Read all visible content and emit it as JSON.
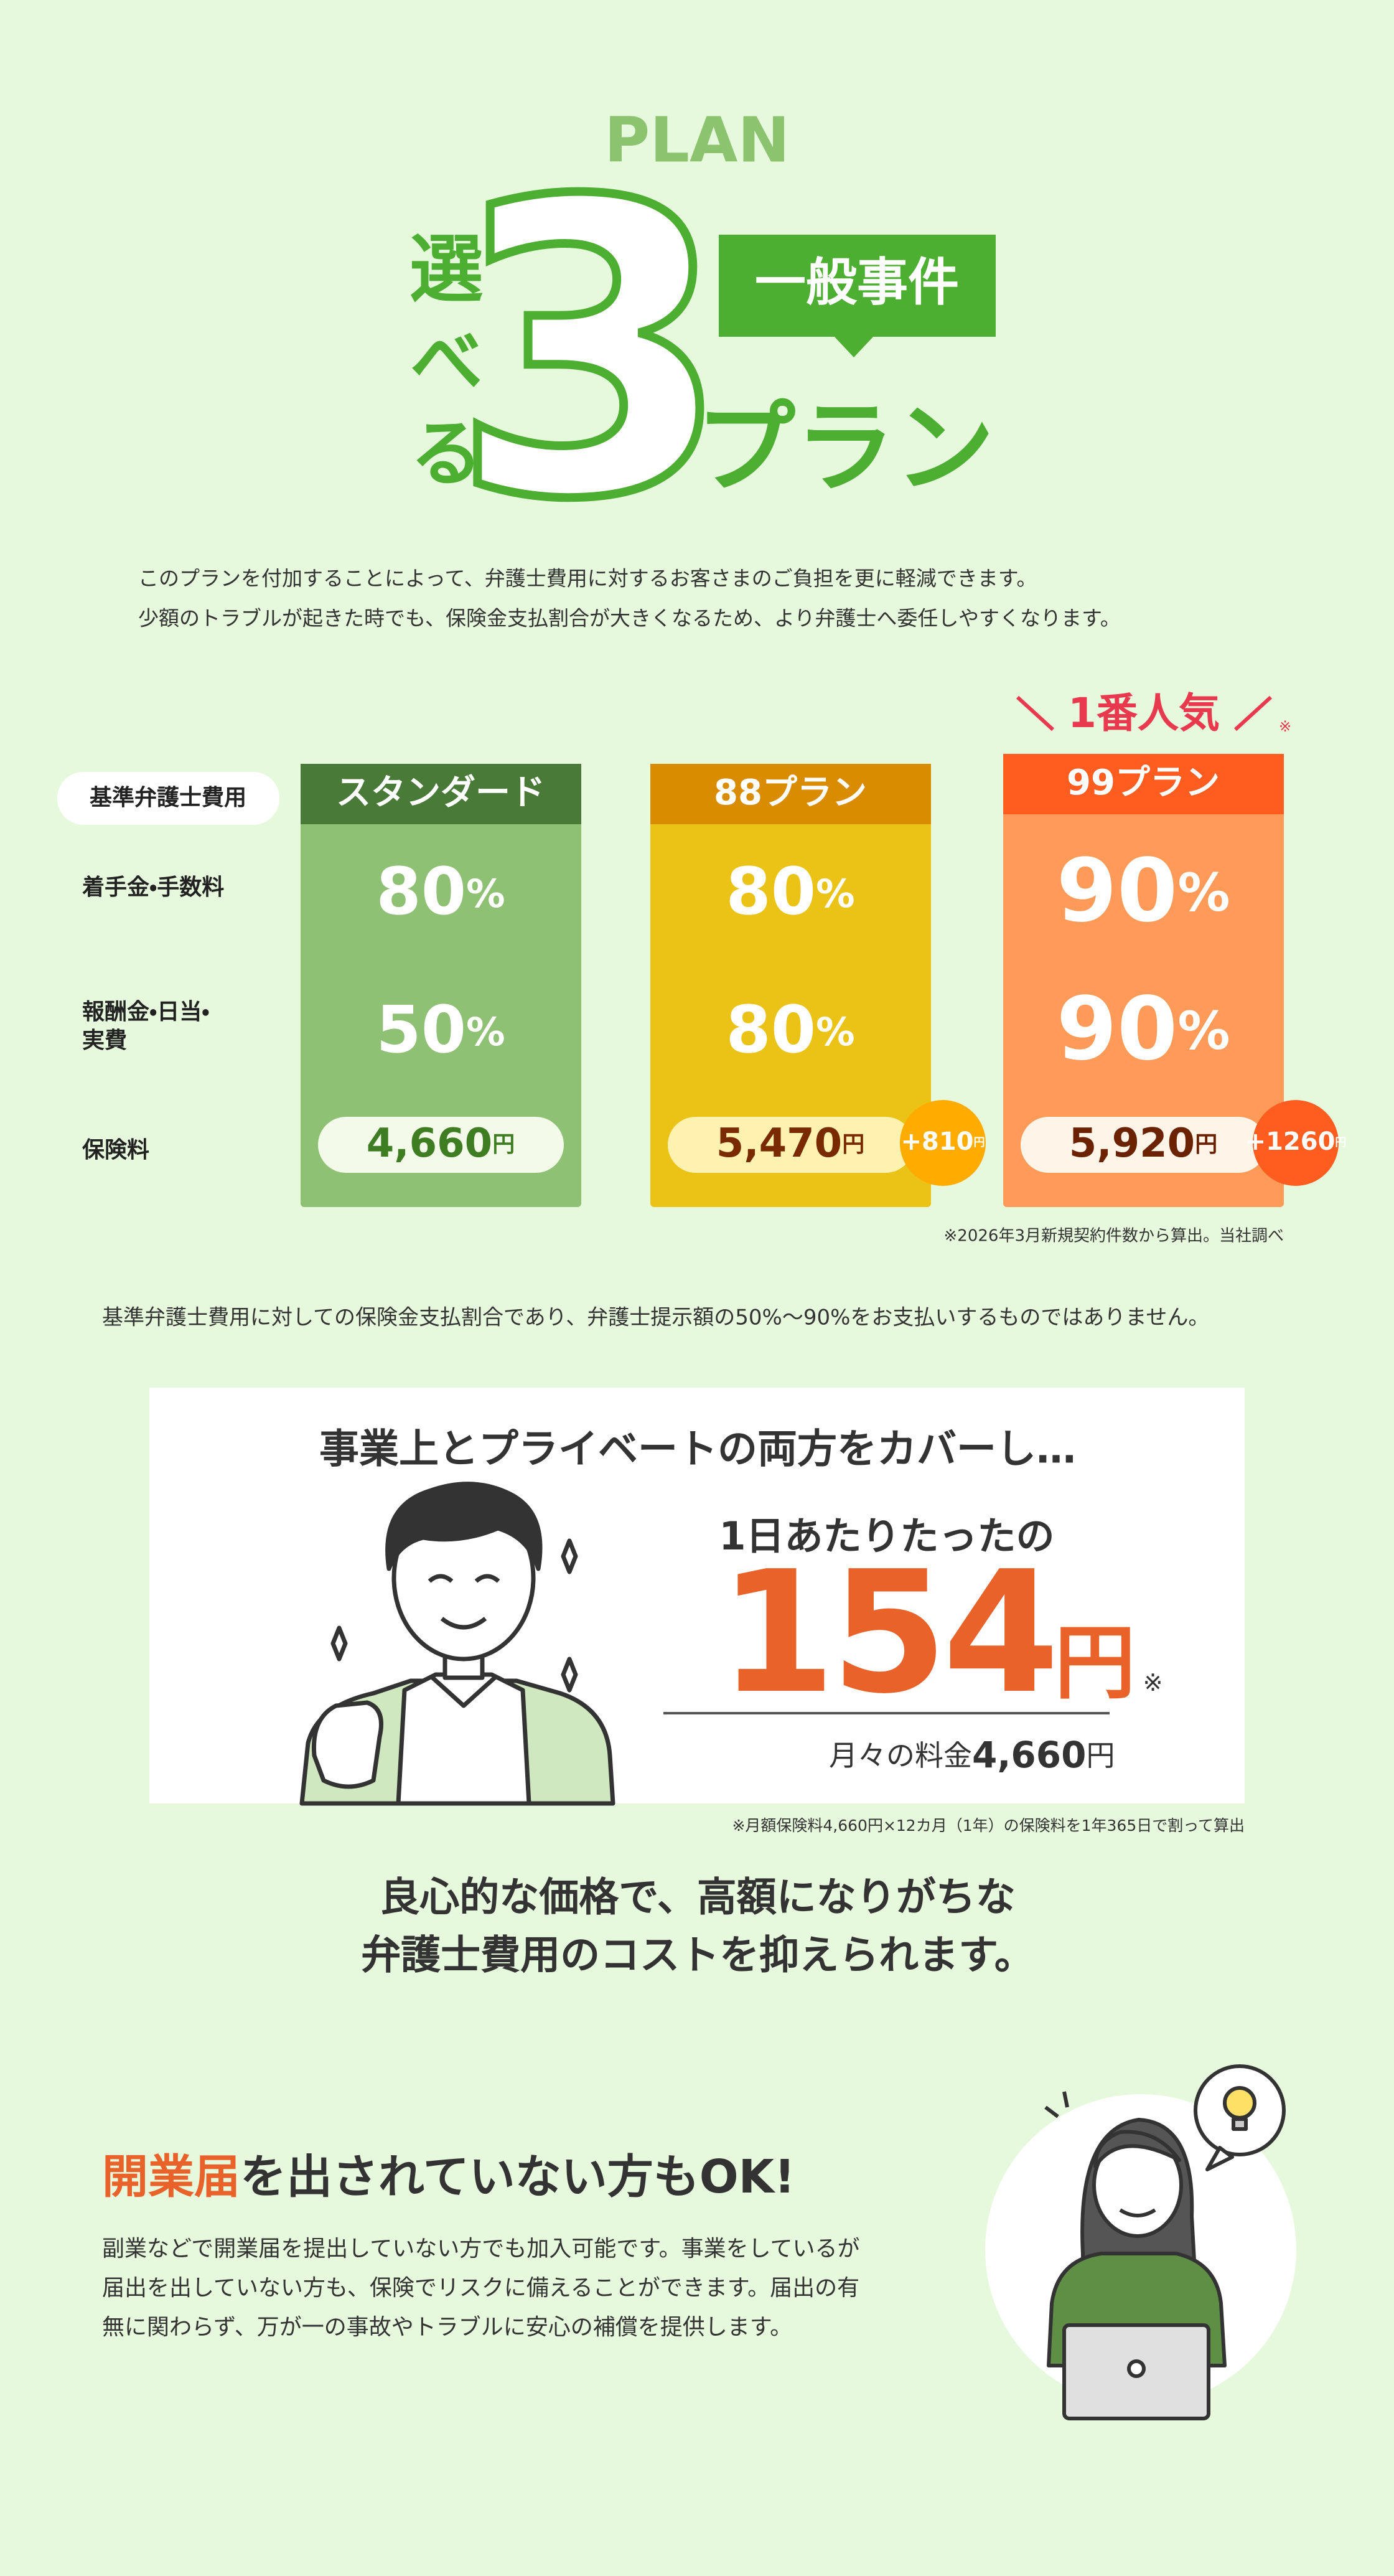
{
  "header": {
    "label": "PLAN",
    "title_vertical": "選べる",
    "number": "3",
    "suffix": "プラン",
    "badge": "一般事件"
  },
  "intro": [
    "このプランを付加することによって、弁護士費用に対するお客さまのご負担を更に軽減できます。",
    "少額のトラブルが起きた時でも、保険金支払割合が大きくなるため、より弁護士へ委任しやすくなります。"
  ],
  "plan_table": {
    "header_label": "基準弁護士費用",
    "row_labels": [
      [
        "着手金・手数料"
      ],
      [
        "報酬金・日当・",
        "実費"
      ],
      [
        "保険料"
      ]
    ],
    "percent_unit": "%",
    "currency": "円",
    "plans": [
      {
        "name": "スタンダード",
        "retainer": 80,
        "reward": 50,
        "premium": "4,660"
      },
      {
        "name": "88プラン",
        "retainer": 80,
        "reward": 80,
        "premium": "5,470",
        "extra": "+810"
      },
      {
        "name": "99プラン",
        "retainer": 90,
        "reward": 90,
        "premium": "5,920",
        "extra": "+1260"
      }
    ],
    "popular": "1番人気",
    "popular_mark": "※",
    "note": "※2026年3月新規契約件数から算出。当社調べ"
  },
  "disclaimer": "基準弁護士費用に対しての保険金支払割合であり、弁護士提示額の50%〜90%をお支払いするものではありません。",
  "cost_card": {
    "title": "事業上とプライベートの両方をカバーし…",
    "lead": "1日あたりたったの",
    "daily": "154",
    "daily_unit": "円",
    "daily_mark": "※",
    "monthly_label": "月々の料金",
    "monthly": "4,660",
    "monthly_unit": "円",
    "footnote": "※月額保険料4,660円×12カ月（1年）の保険料を1年365日で割って算出"
  },
  "message": [
    "良心的な価格で、高額になりがちな",
    "弁護士費用のコストを抑えられます。"
  ],
  "no_license": {
    "heading_highlight": "開業届",
    "heading_rest": "を出されていない方もOK!",
    "body": [
      "副業などで開業届を提出していない方でも加入可能です。事業をしているが",
      "届出を出していない方も、保険でリスクに備えることができます。届出の有",
      "無に関わらず、万が一の事故やトラブルに安心の補償を提供します。"
    ]
  }
}
